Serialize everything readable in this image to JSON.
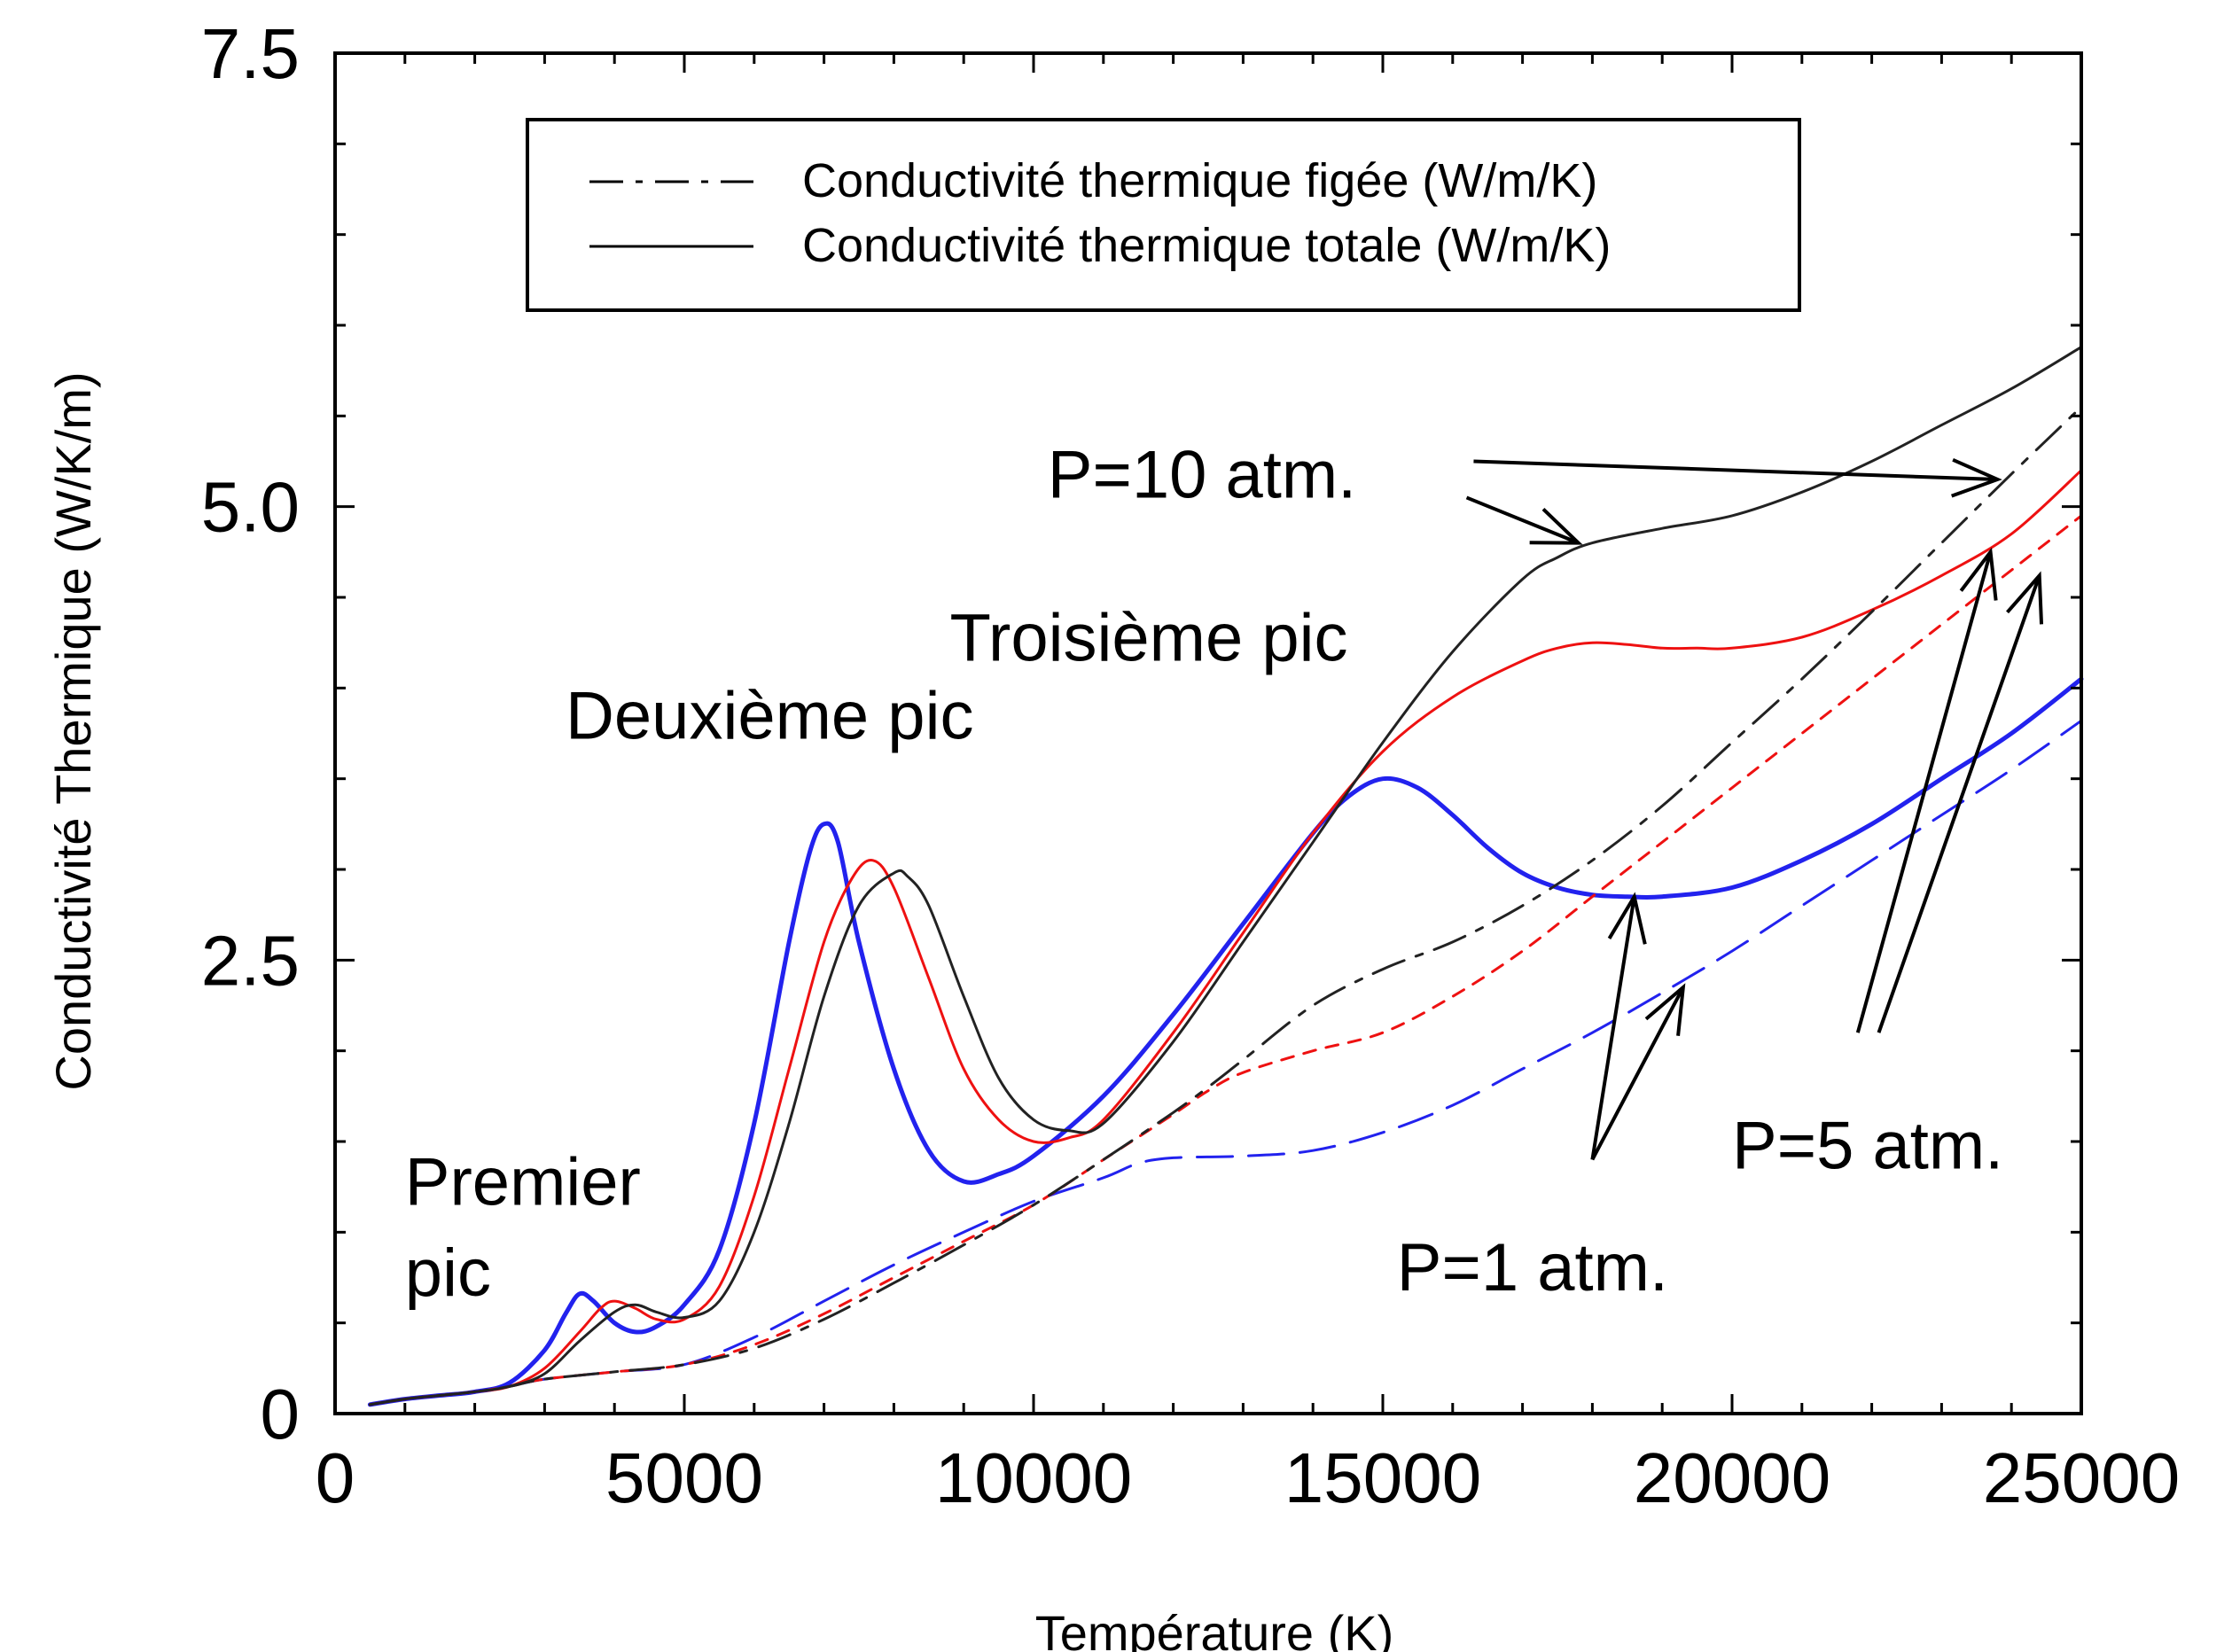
{
  "chart_data": {
    "type": "line",
    "title": "",
    "xlabel": "Température (K)",
    "ylabel": "Conductivité Thermique (W/K/m)",
    "xlim": [
      0,
      25000
    ],
    "ylim": [
      0,
      7.5
    ],
    "grid": false,
    "legend_placement": "top-center",
    "x_ticks": [
      0,
      5000,
      10000,
      15000,
      20000,
      25000
    ],
    "x_tick_labels": [
      "0",
      "5000",
      "10000",
      "15000",
      "20000",
      "25000"
    ],
    "y_ticks": [
      0,
      2.5,
      5.0,
      7.5
    ],
    "y_tick_labels": [
      "0",
      "2.5",
      "5.0",
      "7.5"
    ],
    "legend": [
      {
        "label": "Conductivité thermique figée (W/m/K)",
        "style": "dashdot"
      },
      {
        "label": "Conductivité thermique totale (W/m/K)",
        "style": "solid"
      }
    ],
    "colors": {
      "p1": "#2222ee",
      "p5": "#ee1111",
      "p10": "#222222"
    },
    "series": [
      {
        "kind": "total",
        "pressure": "P=1 atm.",
        "color": "#2222ee",
        "width": 5,
        "x": [
          500,
          1000,
          1500,
          2000,
          2500,
          3000,
          3300,
          3500,
          3700,
          4000,
          4300,
          4600,
          5000,
          5500,
          6000,
          6500,
          6800,
          7000,
          7200,
          7500,
          8000,
          8500,
          9000,
          9500,
          10000,
          11000,
          12000,
          13000,
          14000,
          14500,
          15000,
          15500,
          16000,
          16500,
          17000,
          17500,
          18000,
          18500,
          19000,
          20000,
          21000,
          22000,
          23000,
          24000,
          25000
        ],
        "y": [
          0.05,
          0.08,
          0.1,
          0.12,
          0.17,
          0.35,
          0.55,
          0.66,
          0.62,
          0.5,
          0.45,
          0.48,
          0.6,
          0.9,
          1.6,
          2.6,
          3.1,
          3.25,
          3.15,
          2.6,
          1.9,
          1.45,
          1.28,
          1.32,
          1.42,
          1.75,
          2.2,
          2.7,
          3.2,
          3.4,
          3.5,
          3.45,
          3.3,
          3.12,
          2.98,
          2.9,
          2.86,
          2.85,
          2.85,
          2.9,
          3.05,
          3.25,
          3.5,
          3.75,
          4.05
        ]
      },
      {
        "kind": "frozen",
        "pressure": "P=1 atm.",
        "color": "#2222ee",
        "width": 3,
        "dash": "40 18",
        "x": [
          500,
          1000,
          1500,
          2000,
          2500,
          3000,
          4000,
          5000,
          6000,
          7000,
          8000,
          9000,
          10000,
          11000,
          11500,
          12000,
          13000,
          14000,
          15000,
          16000,
          17000,
          18000,
          19000,
          20000,
          21000,
          22000,
          23000,
          24000,
          25000
        ],
        "y": [
          0.05,
          0.08,
          0.1,
          0.12,
          0.15,
          0.19,
          0.23,
          0.27,
          0.42,
          0.62,
          0.82,
          1.0,
          1.17,
          1.3,
          1.38,
          1.41,
          1.42,
          1.45,
          1.55,
          1.7,
          1.9,
          2.1,
          2.32,
          2.55,
          2.8,
          3.05,
          3.3,
          3.55,
          3.82
        ]
      },
      {
        "kind": "total",
        "pressure": "P=5 atm.",
        "color": "#ee1111",
        "width": 3,
        "x": [
          500,
          1000,
          1500,
          2000,
          2500,
          3000,
          3500,
          3800,
          4000,
          4300,
          4600,
          5000,
          5500,
          6000,
          6500,
          7000,
          7400,
          7700,
          8000,
          8500,
          9000,
          9500,
          10000,
          10500,
          11000,
          12000,
          13000,
          14000,
          15000,
          16000,
          17000,
          17500,
          18000,
          18500,
          19000,
          19500,
          20000,
          21000,
          22000,
          23000,
          24000,
          25000
        ],
        "y": [
          0.05,
          0.08,
          0.1,
          0.12,
          0.15,
          0.25,
          0.45,
          0.58,
          0.62,
          0.58,
          0.52,
          0.52,
          0.7,
          1.2,
          1.9,
          2.6,
          2.95,
          3.05,
          2.9,
          2.4,
          1.9,
          1.62,
          1.5,
          1.52,
          1.62,
          2.1,
          2.65,
          3.2,
          3.65,
          3.95,
          4.15,
          4.22,
          4.25,
          4.24,
          4.22,
          4.22,
          4.22,
          4.28,
          4.43,
          4.62,
          4.85,
          5.2
        ]
      },
      {
        "kind": "frozen",
        "pressure": "P=5 atm.",
        "color": "#ee1111",
        "width": 3,
        "dash": "14 12",
        "x": [
          500,
          1000,
          1500,
          2000,
          2500,
          3000,
          4000,
          5000,
          6000,
          7000,
          8000,
          9000,
          10000,
          11000,
          12000,
          12500,
          13000,
          14000,
          15000,
          16000,
          17000,
          18000,
          19000,
          20000,
          21000,
          22000,
          23000,
          24000,
          25000
        ],
        "y": [
          0.05,
          0.08,
          0.1,
          0.12,
          0.15,
          0.19,
          0.23,
          0.27,
          0.38,
          0.55,
          0.75,
          0.95,
          1.15,
          1.4,
          1.65,
          1.78,
          1.88,
          2.0,
          2.1,
          2.3,
          2.55,
          2.85,
          3.15,
          3.45,
          3.75,
          4.05,
          4.35,
          4.65,
          4.95
        ]
      },
      {
        "kind": "total",
        "pressure": "P=10 atm.",
        "color": "#222222",
        "width": 3,
        "x": [
          500,
          1000,
          1500,
          2000,
          2500,
          3000,
          3500,
          4000,
          4300,
          4600,
          5000,
          5500,
          6000,
          6500,
          7000,
          7500,
          8000,
          8200,
          8500,
          9000,
          9500,
          10000,
          10500,
          11000,
          12000,
          13000,
          14000,
          15000,
          16000,
          17000,
          17500,
          18000,
          19000,
          20000,
          21000,
          22000,
          23000,
          24000,
          25000
        ],
        "y": [
          0.05,
          0.08,
          0.1,
          0.12,
          0.15,
          0.22,
          0.4,
          0.56,
          0.6,
          0.56,
          0.53,
          0.62,
          1.0,
          1.6,
          2.3,
          2.8,
          2.98,
          2.96,
          2.8,
          2.3,
          1.85,
          1.62,
          1.56,
          1.6,
          2.05,
          2.6,
          3.15,
          3.7,
          4.2,
          4.6,
          4.72,
          4.8,
          4.88,
          4.95,
          5.08,
          5.25,
          5.45,
          5.65,
          5.88
        ]
      },
      {
        "kind": "frozen",
        "pressure": "P=10 atm.",
        "color": "#222222",
        "width": 3,
        "dash": "38 14 8 14",
        "x": [
          500,
          1000,
          1500,
          2000,
          2500,
          3000,
          4000,
          5000,
          6000,
          7000,
          8000,
          9000,
          10000,
          11000,
          12000,
          12500,
          13000,
          14000,
          15000,
          16000,
          17000,
          18000,
          19000,
          20000,
          21000,
          22000,
          23000,
          24000,
          25000
        ],
        "y": [
          0.05,
          0.08,
          0.1,
          0.12,
          0.15,
          0.19,
          0.23,
          0.27,
          0.36,
          0.52,
          0.72,
          0.93,
          1.15,
          1.4,
          1.66,
          1.8,
          1.95,
          2.25,
          2.45,
          2.6,
          2.8,
          3.05,
          3.35,
          3.7,
          4.05,
          4.42,
          4.8,
          5.18,
          5.55
        ]
      }
    ],
    "annotations": [
      {
        "name": "annotation-premier",
        "lines": [
          "Premier",
          "pic"
        ],
        "at": [
          1000,
          1.15
        ],
        "line_gap": 0.5
      },
      {
        "name": "annotation-deuxieme",
        "lines": [
          "Deuxième pic"
        ],
        "at": [
          3300,
          3.72
        ]
      },
      {
        "name": "annotation-troisieme",
        "lines": [
          "Troisième pic"
        ],
        "at": [
          8800,
          4.15
        ]
      },
      {
        "name": "annotation-p10",
        "lines": [
          "P=10 atm."
        ],
        "at": [
          10200,
          5.05
        ]
      },
      {
        "name": "annotation-p5",
        "lines": [
          "P=5 atm."
        ],
        "at": [
          20000,
          1.35
        ]
      },
      {
        "name": "annotation-p1",
        "lines": [
          "P=1 atm."
        ],
        "at": [
          15200,
          0.68
        ]
      }
    ],
    "arrows": [
      {
        "name": "arrow-p10-frozen",
        "from": [
          16300,
          5.25
        ],
        "to": [
          23800,
          5.15
        ]
      },
      {
        "name": "arrow-p10-total",
        "from": [
          16200,
          5.05
        ],
        "to": [
          17800,
          4.8
        ]
      },
      {
        "name": "arrow-p5-total",
        "from": [
          21800,
          2.1
        ],
        "to": [
          23700,
          4.75
        ]
      },
      {
        "name": "arrow-p5-frozen",
        "from": [
          22100,
          2.1
        ],
        "to": [
          24400,
          4.62
        ]
      },
      {
        "name": "arrow-p1-total",
        "from": [
          18000,
          1.4
        ],
        "to": [
          18600,
          2.85
        ]
      },
      {
        "name": "arrow-p1-frozen",
        "from": [
          18000,
          1.4
        ],
        "to": [
          19300,
          2.35
        ]
      }
    ]
  }
}
